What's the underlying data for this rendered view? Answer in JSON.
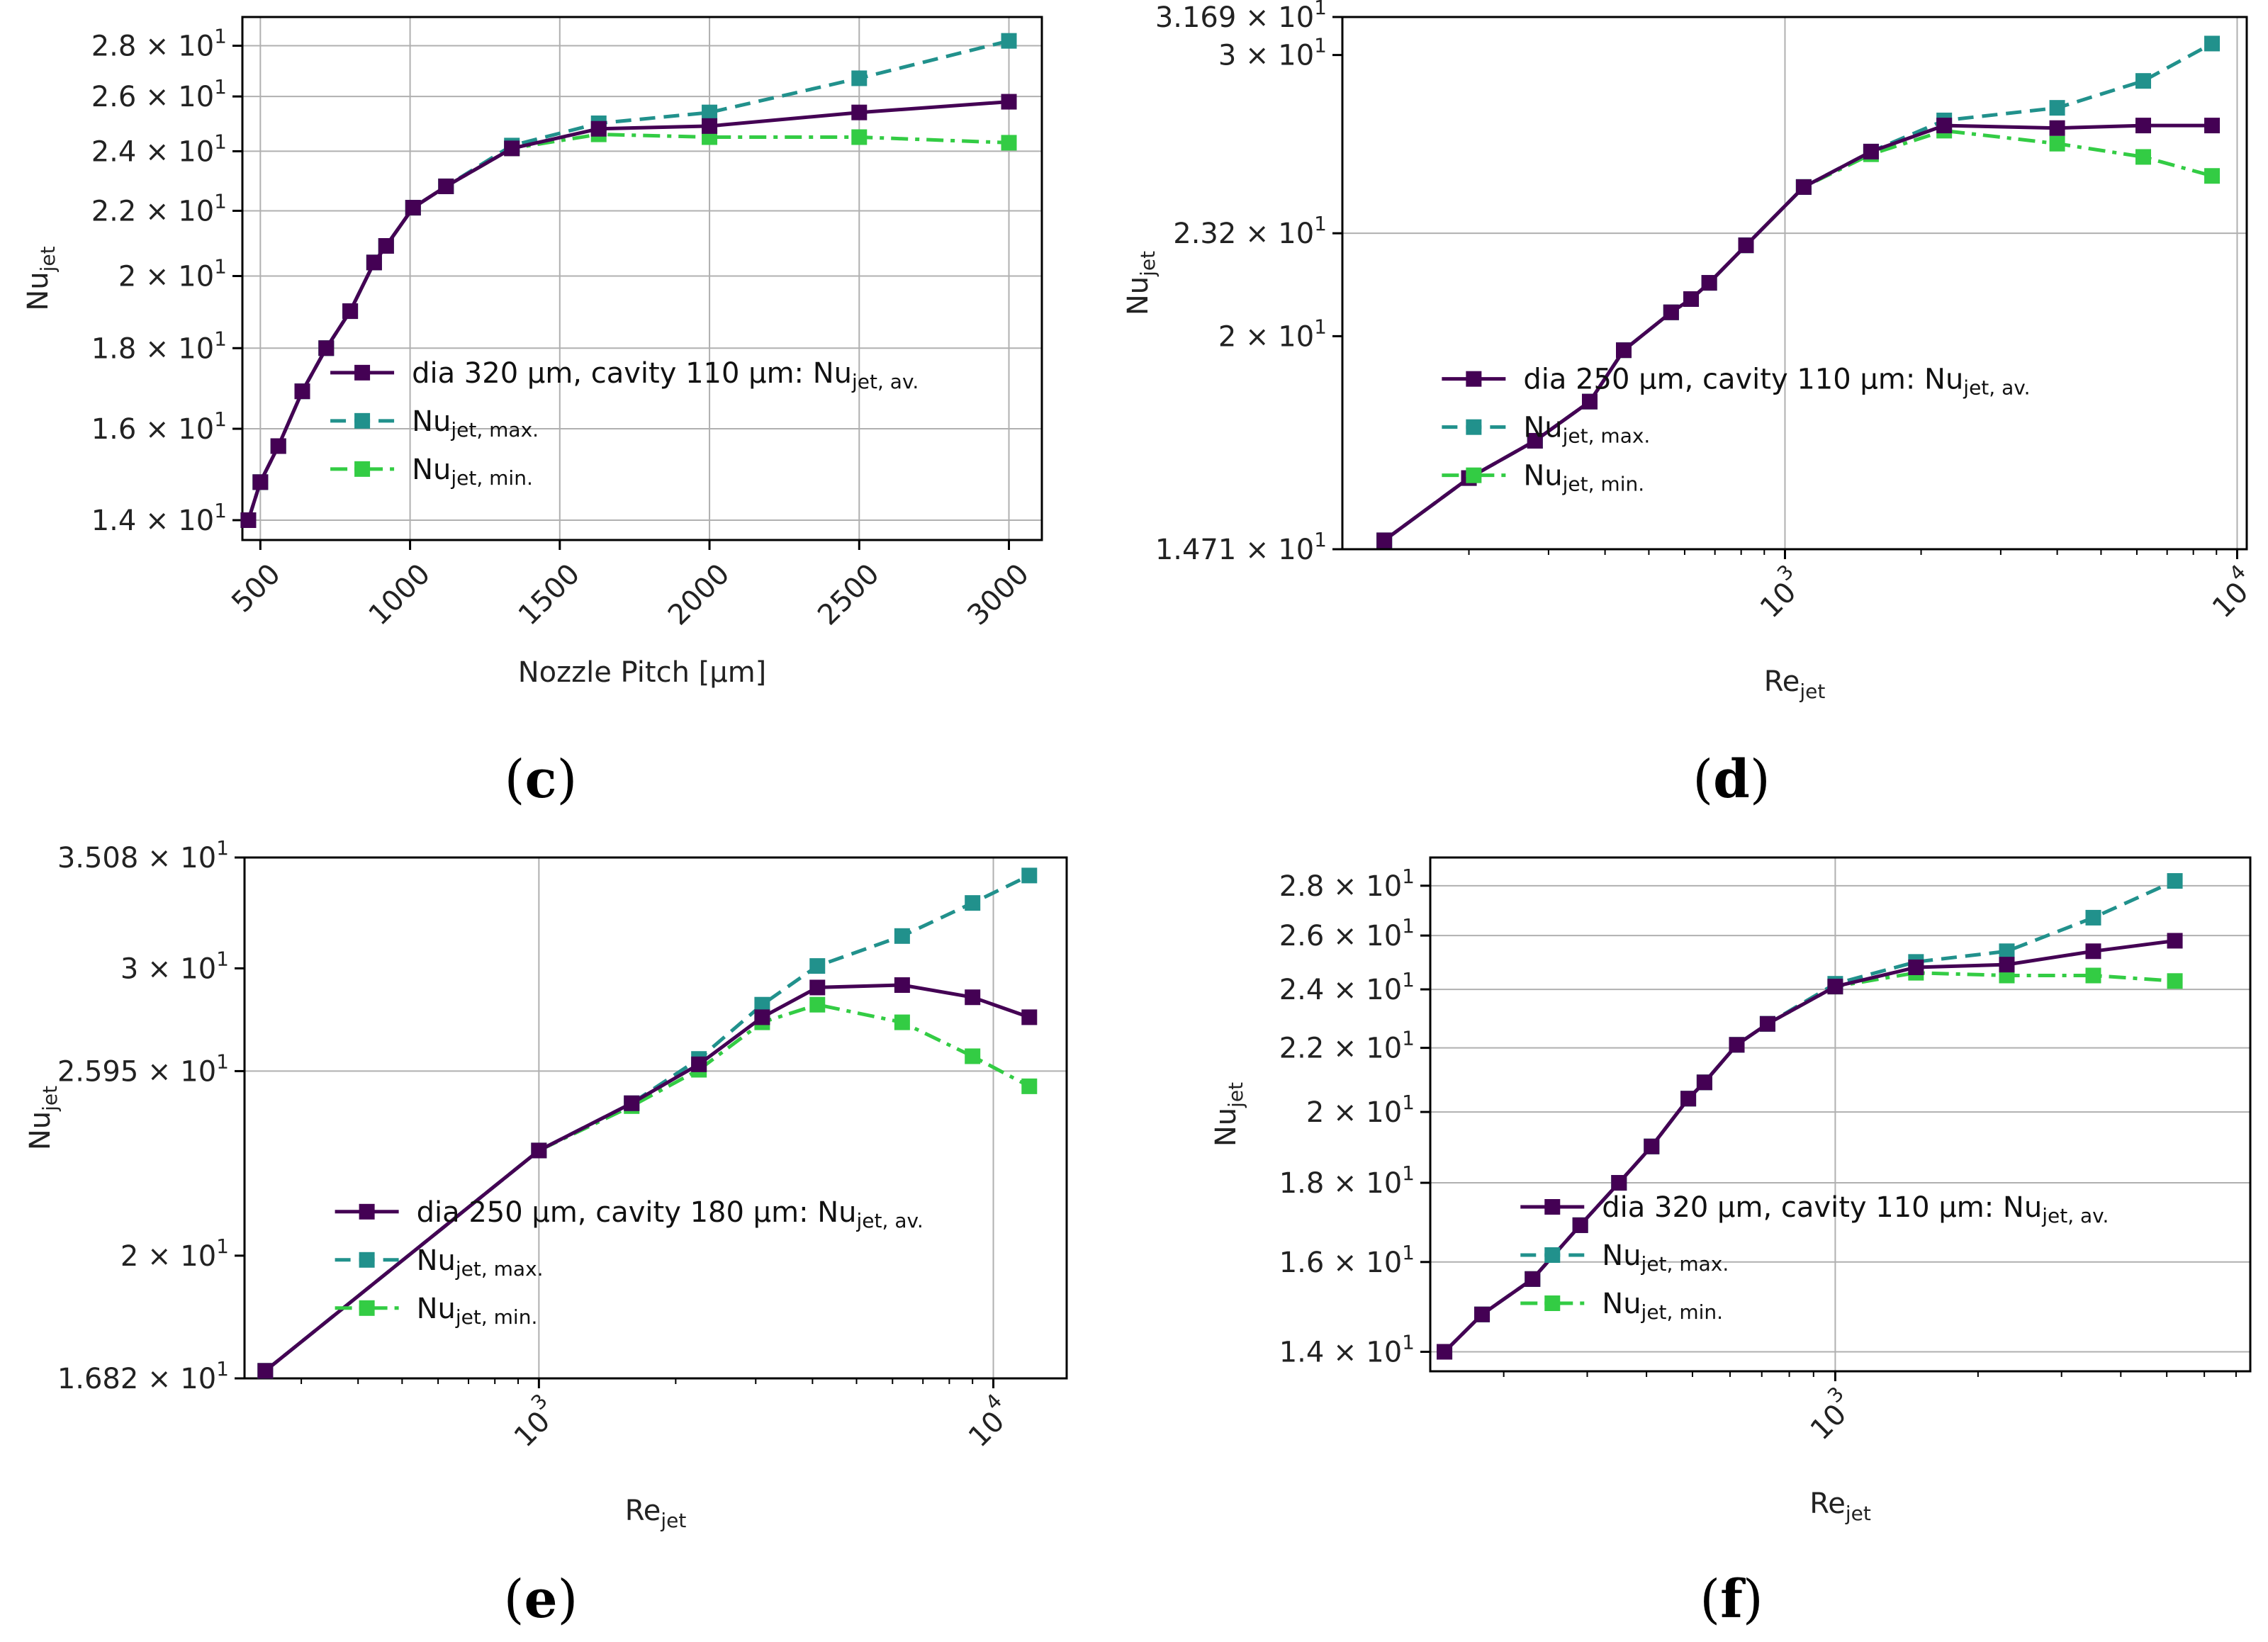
{
  "figure_labels": [
    "c",
    "d",
    "e",
    "f"
  ],
  "chart_data": [
    {
      "panel": "c",
      "type": "line",
      "xscale": "linear",
      "yscale": "log",
      "xlabel": "Nozzle Pitch [µm]",
      "ylabel": "Nu",
      "ylabel_sub": "jet",
      "xlim": [
        440,
        3110
      ],
      "ylim": [
        13.6,
        29.2
      ],
      "xticks": [
        500,
        1000,
        1500,
        2000,
        2500,
        3000
      ],
      "xtick_labels": [
        "500",
        "1000",
        "1500",
        "2000",
        "2500",
        "3000"
      ],
      "xtick_rotate": true,
      "yticks": [
        14,
        16,
        18,
        20,
        22,
        24,
        26,
        28
      ],
      "ytick_labels": [
        [
          "1.4",
          "1"
        ],
        [
          "1.6",
          "1"
        ],
        [
          "1.8",
          "1"
        ],
        [
          "2",
          "1"
        ],
        [
          "2.2",
          "1"
        ],
        [
          "2.4",
          "1"
        ],
        [
          "2.6",
          "1"
        ],
        [
          "2.8",
          "1"
        ]
      ],
      "legend_position": "center-right",
      "x": [
        460,
        500,
        560,
        640,
        720,
        800,
        880,
        920,
        1010,
        1120,
        1340,
        1630,
        2000,
        2500,
        3000
      ],
      "series": [
        {
          "name": "dia 320 µm, cavity 110 µm: Nu",
          "sub": "jet, av.",
          "color": "#440154",
          "dash": "solid",
          "values": [
            14.0,
            14.8,
            15.6,
            16.9,
            18.0,
            19.0,
            20.4,
            20.9,
            22.1,
            22.8,
            24.1,
            24.8,
            24.9,
            25.4,
            25.8
          ]
        },
        {
          "name": "Nu",
          "sub": "jet, max.",
          "color": "#21918c",
          "dash": "dashed",
          "values": [
            14.0,
            14.8,
            15.6,
            16.9,
            18.0,
            19.0,
            20.4,
            20.9,
            22.1,
            22.8,
            24.2,
            25.0,
            25.4,
            26.7,
            28.2
          ]
        },
        {
          "name": "Nu",
          "sub": "jet, min.",
          "color": "#33cc44",
          "dash": "dashdot",
          "values": [
            14.0,
            14.8,
            15.6,
            16.9,
            18.0,
            19.0,
            20.4,
            20.9,
            22.1,
            22.8,
            24.1,
            24.6,
            24.5,
            24.5,
            24.3
          ]
        }
      ]
    },
    {
      "panel": "d",
      "type": "line",
      "xscale": "log",
      "yscale": "log",
      "xlabel": "Re",
      "xlabel_sub": "jet",
      "ylabel": "Nu",
      "ylabel_sub": "jet",
      "xlim": [
        105,
        10500
      ],
      "ylim": [
        14.71,
        31.69
      ],
      "xticks": [
        1000,
        10000
      ],
      "xtick_labels": [
        [
          "10",
          "3"
        ],
        [
          "10",
          "4"
        ]
      ],
      "xtick_rotate": true,
      "minor_xticks": [
        200,
        300,
        400,
        500,
        600,
        700,
        800,
        900,
        2000,
        3000,
        4000,
        5000,
        6000,
        7000,
        8000,
        9000
      ],
      "yticks": [
        14.71,
        20,
        23.2,
        30,
        31.69
      ],
      "ytick_labels": [
        [
          "1.471",
          "1"
        ],
        [
          "2",
          "1"
        ],
        [
          "2.32",
          "1"
        ],
        [
          "3",
          "1"
        ],
        [
          "3.169",
          "1"
        ]
      ],
      "ygrid": [
        23.2
      ],
      "legend_position": "center-right",
      "x": [
        130,
        200,
        280,
        370,
        440,
        560,
        620,
        680,
        820,
        1100,
        1550,
        2250,
        4000,
        6200,
        8800
      ],
      "series": [
        {
          "name": "dia 250 µm, cavity 110 µm: Nu",
          "sub": "jet, av.",
          "color": "#440154",
          "dash": "solid",
          "values": [
            14.9,
            16.3,
            17.2,
            18.2,
            19.6,
            20.7,
            21.1,
            21.6,
            22.8,
            24.8,
            26.1,
            27.1,
            27.0,
            27.1,
            27.1
          ]
        },
        {
          "name": "Nu",
          "sub": "jet, max.",
          "color": "#21918c",
          "dash": "dashed",
          "values": [
            14.9,
            16.3,
            17.2,
            18.2,
            19.6,
            20.7,
            21.1,
            21.6,
            22.8,
            24.8,
            26.1,
            27.3,
            27.8,
            28.9,
            30.5
          ]
        },
        {
          "name": "Nu",
          "sub": "jet, min.",
          "color": "#33cc44",
          "dash": "dashdot",
          "values": [
            14.9,
            16.3,
            17.2,
            18.2,
            19.6,
            20.7,
            21.1,
            21.6,
            22.8,
            24.8,
            26.0,
            26.9,
            26.4,
            25.9,
            25.2
          ]
        }
      ]
    },
    {
      "panel": "e",
      "type": "line",
      "xscale": "log",
      "yscale": "log",
      "xlabel": "Re",
      "xlabel_sub": "jet",
      "ylabel": "Nu",
      "ylabel_sub": "jet",
      "xlim": [
        225,
        14500
      ],
      "ylim": [
        16.82,
        35.08
      ],
      "xticks": [
        1000,
        10000
      ],
      "xtick_labels": [
        [
          "10",
          "3"
        ],
        [
          "10",
          "4"
        ]
      ],
      "xtick_rotate": true,
      "minor_xticks": [
        300,
        400,
        500,
        600,
        700,
        800,
        900,
        2000,
        3000,
        4000,
        5000,
        6000,
        7000,
        8000,
        9000
      ],
      "yticks": [
        16.82,
        20,
        25.95,
        30,
        35.08
      ],
      "ytick_labels": [
        [
          "1.682",
          "1"
        ],
        [
          "2",
          "1"
        ],
        [
          "2.595",
          "1"
        ],
        [
          "3",
          "1"
        ],
        [
          "3.508",
          "1"
        ]
      ],
      "ygrid": [
        25.95
      ],
      "legend_position": "center-right",
      "x": [
        250,
        1000,
        1600,
        2250,
        3100,
        4100,
        6300,
        9000,
        12000
      ],
      "series": [
        {
          "name": "dia 250 µm, cavity 180 µm: Nu",
          "sub": "jet, av.",
          "color": "#440154",
          "dash": "solid",
          "values": [
            17.0,
            23.2,
            24.8,
            26.2,
            28.0,
            29.2,
            29.3,
            28.8,
            28.0
          ]
        },
        {
          "name": "Nu",
          "sub": "jet, max.",
          "color": "#21918c",
          "dash": "dashed",
          "values": [
            17.0,
            23.2,
            24.8,
            26.4,
            28.5,
            30.1,
            31.4,
            32.9,
            34.2
          ]
        },
        {
          "name": "Nu",
          "sub": "jet, min.",
          "color": "#33cc44",
          "dash": "dashdot",
          "values": [
            17.0,
            23.2,
            24.7,
            26.0,
            27.8,
            28.5,
            27.8,
            26.5,
            25.4
          ]
        }
      ]
    },
    {
      "panel": "f",
      "type": "line",
      "xscale": "log",
      "yscale": "log",
      "xlabel": "Re",
      "xlabel_sub": "jet",
      "ylabel": "Nu",
      "ylabel_sub": "jet",
      "xlim": [
        140,
        7500
      ],
      "ylim": [
        13.6,
        29.2
      ],
      "xticks": [
        1000
      ],
      "xtick_labels": [
        [
          "10",
          "3"
        ]
      ],
      "xtick_rotate": true,
      "minor_xticks": [
        200,
        300,
        400,
        500,
        600,
        700,
        800,
        900,
        2000,
        3000,
        4000,
        5000,
        6000,
        7000
      ],
      "yticks": [
        14,
        16,
        18,
        20,
        22,
        24,
        26,
        28
      ],
      "ytick_labels": [
        [
          "1.4",
          "1"
        ],
        [
          "1.6",
          "1"
        ],
        [
          "1.8",
          "1"
        ],
        [
          "2",
          "1"
        ],
        [
          "2.2",
          "1"
        ],
        [
          "2.4",
          "1"
        ],
        [
          "2.6",
          "1"
        ],
        [
          "2.8",
          "1"
        ]
      ],
      "legend_position": "center-right",
      "x": [
        150,
        180,
        230,
        290,
        350,
        410,
        490,
        530,
        620,
        720,
        1000,
        1480,
        2300,
        3500,
        5200
      ],
      "series": [
        {
          "name": "dia 320 µm, cavity 110 µm: Nu",
          "sub": "jet, av.",
          "color": "#440154",
          "dash": "solid",
          "values": [
            14.0,
            14.8,
            15.6,
            16.9,
            18.0,
            19.0,
            20.4,
            20.9,
            22.1,
            22.8,
            24.1,
            24.8,
            24.9,
            25.4,
            25.8
          ]
        },
        {
          "name": "Nu",
          "sub": "jet, max.",
          "color": "#21918c",
          "dash": "dashed",
          "values": [
            14.0,
            14.8,
            15.6,
            16.9,
            18.0,
            19.0,
            20.4,
            20.9,
            22.1,
            22.8,
            24.2,
            25.0,
            25.4,
            26.7,
            28.2
          ]
        },
        {
          "name": "Nu",
          "sub": "jet, min.",
          "color": "#33cc44",
          "dash": "dashdot",
          "values": [
            14.0,
            14.8,
            15.6,
            16.9,
            18.0,
            19.0,
            20.4,
            20.9,
            22.1,
            22.8,
            24.1,
            24.6,
            24.5,
            24.5,
            24.3
          ]
        }
      ]
    }
  ]
}
